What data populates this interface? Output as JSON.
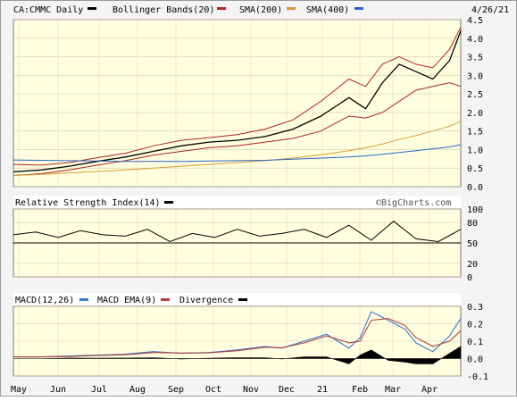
{
  "header": {
    "symbol_label": "CA:CMMC Daily",
    "bollinger_label": "Bollinger Bands(20)",
    "sma200_label": "SMA(200)",
    "sma400_label": "SMA(400)",
    "date_label": "4/26/21"
  },
  "colors": {
    "plot_bg": "#ffffe0",
    "price": "#000000",
    "bollinger": "#b22222",
    "sma200": "#d99a30",
    "sma400": "#2b63c9",
    "macd": "#3a78d4",
    "macd_ema": "#b24040",
    "divergence": "#000000",
    "rsi": "#000000"
  },
  "rsi_panel": {
    "title": "Relative Strength Index(14)",
    "watermark": "©BigCharts.com",
    "ticks": [
      "100",
      "80",
      "50",
      "20",
      "0"
    ]
  },
  "macd_panel": {
    "title": "MACD(12,26)",
    "ema_label": "MACD EMA(9)",
    "divergence_label": "Divergence",
    "ticks": [
      "0.3",
      "0.2",
      "0.1",
      "0.0",
      "-0.1"
    ]
  },
  "price_ticks": [
    "4.5",
    "4.0",
    "3.5",
    "3.0",
    "2.5",
    "2.0",
    "1.5",
    "1.0",
    "0.5",
    "0.0"
  ],
  "x_labels": [
    "May",
    "Jun",
    "Jul",
    "Aug",
    "Sep",
    "Oct",
    "Nov",
    "Dec",
    "21",
    "Feb",
    "Mar",
    "Apr"
  ],
  "chart_data": [
    {
      "type": "line",
      "panel": "price",
      "ylim": [
        0,
        4.5
      ],
      "x": [
        0,
        5,
        10,
        15,
        20,
        25,
        30,
        35,
        40,
        45,
        50,
        55,
        60,
        63,
        66,
        69,
        72,
        75,
        78,
        80
      ],
      "series": [
        {
          "name": "CA:CMMC Daily",
          "values": [
            0.4,
            0.45,
            0.55,
            0.68,
            0.8,
            0.95,
            1.1,
            1.2,
            1.25,
            1.35,
            1.55,
            1.9,
            2.4,
            2.1,
            2.8,
            3.3,
            3.1,
            2.9,
            3.4,
            4.2
          ]
        },
        {
          "name": "Bollinger Bands(20) upper",
          "values": [
            0.6,
            0.58,
            0.65,
            0.78,
            0.9,
            1.1,
            1.25,
            1.32,
            1.4,
            1.55,
            1.8,
            2.3,
            2.9,
            2.7,
            3.3,
            3.5,
            3.3,
            3.2,
            3.7,
            4.3
          ]
        },
        {
          "name": "Bollinger Bands(20) lower",
          "values": [
            0.3,
            0.35,
            0.45,
            0.58,
            0.7,
            0.85,
            0.95,
            1.05,
            1.1,
            1.2,
            1.3,
            1.5,
            1.9,
            1.85,
            2.0,
            2.3,
            2.6,
            2.7,
            2.8,
            2.7
          ]
        },
        {
          "name": "SMA(200)",
          "values": [
            0.3,
            0.33,
            0.37,
            0.41,
            0.45,
            0.5,
            0.55,
            0.6,
            0.65,
            0.7,
            0.77,
            0.86,
            0.97,
            1.05,
            1.15,
            1.27,
            1.38,
            1.5,
            1.63,
            1.76
          ]
        },
        {
          "name": "SMA(400)",
          "values": [
            0.72,
            0.71,
            0.7,
            0.69,
            0.68,
            0.68,
            0.68,
            0.69,
            0.7,
            0.71,
            0.74,
            0.77,
            0.8,
            0.83,
            0.87,
            0.92,
            0.97,
            1.02,
            1.07,
            1.13
          ]
        }
      ]
    },
    {
      "type": "line",
      "panel": "rsi",
      "ylim": [
        0,
        100
      ],
      "x": [
        0,
        4,
        8,
        12,
        16,
        20,
        24,
        28,
        32,
        36,
        40,
        44,
        48,
        52,
        56,
        60,
        64,
        68,
        72,
        76,
        80
      ],
      "series": [
        {
          "name": "Relative Strength Index(14)",
          "values": [
            62,
            66,
            58,
            68,
            62,
            60,
            70,
            52,
            64,
            58,
            70,
            60,
            64,
            70,
            58,
            76,
            54,
            82,
            56,
            52,
            70
          ]
        }
      ]
    },
    {
      "type": "line",
      "panel": "macd",
      "ylim": [
        -0.1,
        0.3
      ],
      "x": [
        0,
        5,
        10,
        15,
        20,
        25,
        30,
        35,
        40,
        45,
        48,
        52,
        56,
        60,
        62,
        64,
        67,
        70,
        72,
        75,
        78,
        80
      ],
      "series": [
        {
          "name": "MACD(12,26)",
          "values": [
            0.01,
            0.01,
            0.015,
            0.02,
            0.025,
            0.04,
            0.03,
            0.035,
            0.05,
            0.07,
            0.06,
            0.1,
            0.14,
            0.06,
            0.12,
            0.27,
            0.22,
            0.17,
            0.09,
            0.04,
            0.13,
            0.23
          ]
        },
        {
          "name": "MACD EMA(9)",
          "values": [
            0.01,
            0.01,
            0.012,
            0.018,
            0.022,
            0.035,
            0.032,
            0.033,
            0.045,
            0.065,
            0.062,
            0.09,
            0.13,
            0.09,
            0.1,
            0.22,
            0.23,
            0.19,
            0.12,
            0.07,
            0.1,
            0.16
          ]
        },
        {
          "name": "Divergence",
          "values": [
            0,
            0,
            0.003,
            0.002,
            0.003,
            0.005,
            -0.002,
            0.002,
            0.005,
            0.005,
            -0.002,
            0.01,
            0.01,
            -0.03,
            0.02,
            0.05,
            -0.01,
            -0.02,
            -0.03,
            -0.03,
            0.03,
            0.07
          ]
        }
      ]
    }
  ]
}
